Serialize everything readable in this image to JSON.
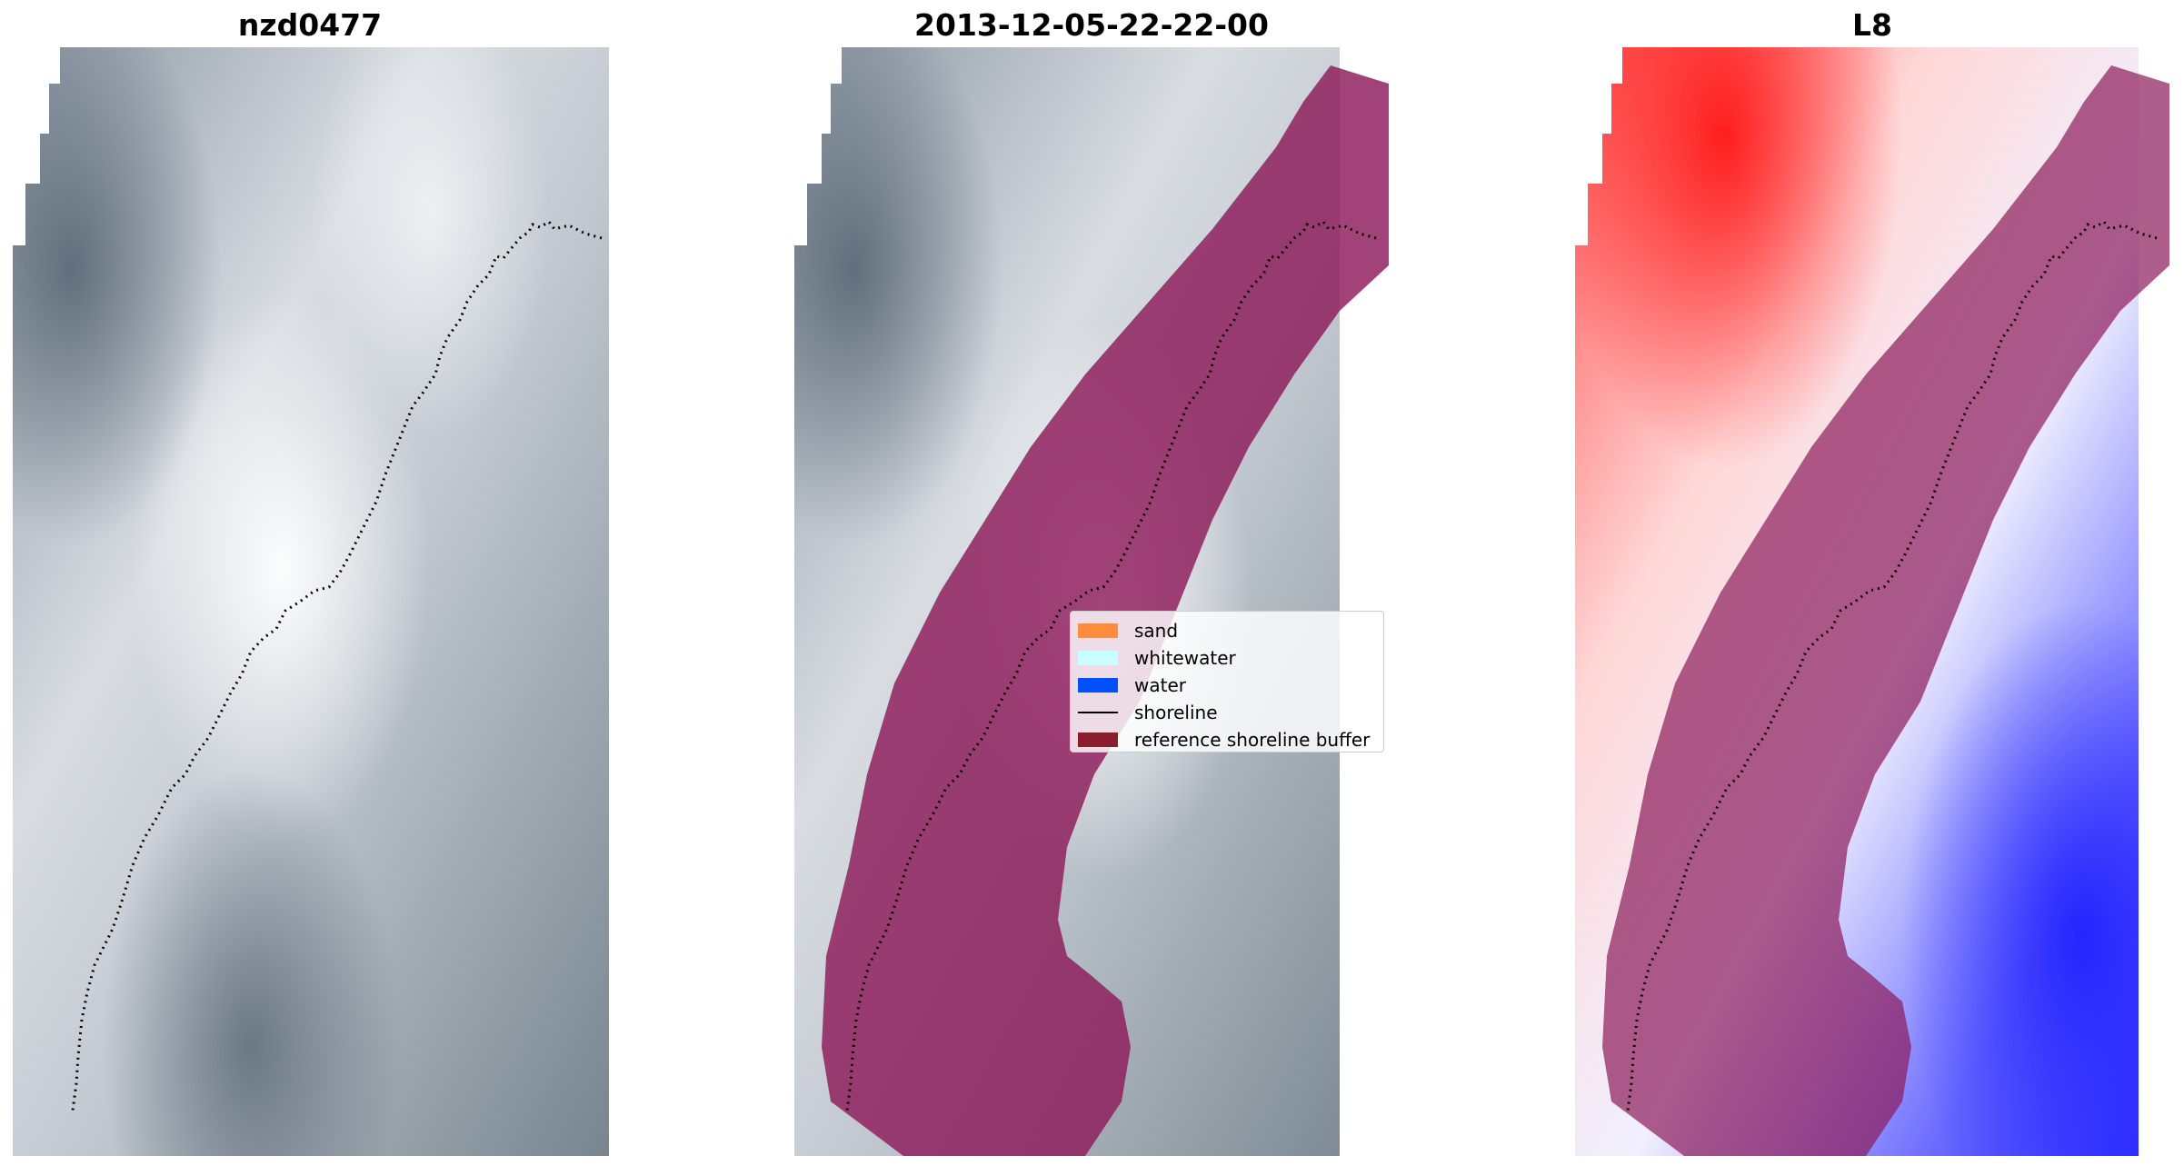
{
  "panels": [
    {
      "title": "nzd0477"
    },
    {
      "title": "2013-12-05-22-22-00"
    },
    {
      "title": "L8"
    }
  ],
  "legend": {
    "items": [
      {
        "label": "sand",
        "color": "#ff8c3c"
      },
      {
        "label": "whitewater",
        "color": "#c8ffff"
      },
      {
        "label": "water",
        "color": "#0050ff"
      },
      {
        "label": "shoreline",
        "color": "#000000"
      },
      {
        "label": "reference shoreline buffer",
        "color": "#8b1e2d"
      }
    ]
  },
  "colors": {
    "buffer_overlay": "#8c1a5a",
    "cloud_light": "#f2f4f6",
    "cloud_dark": "#6e7b88",
    "index_positive": "#ff2020",
    "index_negative": "#2020ff"
  }
}
